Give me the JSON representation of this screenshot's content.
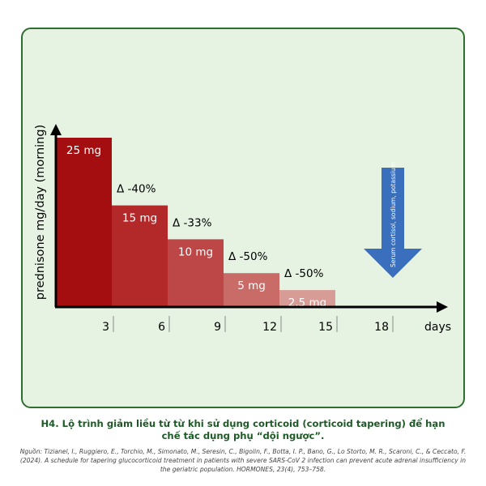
{
  "colors": {
    "panel_bg": "#e6f3e3",
    "panel_border": "#2f6e2f",
    "bars": [
      "#a50e10",
      "#b3292a",
      "#bd4646",
      "#c96b67",
      "#d89c97"
    ],
    "arrow": "#3a6fbd",
    "caption": "#1d5a26"
  },
  "chart_data": {
    "type": "bar",
    "ylabel": "prednisone mg/day (morning)",
    "xlabel": "days",
    "x_ticks": [
      "3",
      "6",
      "9",
      "12",
      "15",
      "18"
    ],
    "ylim": [
      0,
      30
    ],
    "bars": [
      {
        "x_start": 0,
        "x_end": 3,
        "value": 25,
        "label": "25 mg"
      },
      {
        "x_start": 3,
        "x_end": 6,
        "value": 15,
        "label": "15 mg"
      },
      {
        "x_start": 6,
        "x_end": 9,
        "value": 10,
        "label": "10 mg"
      },
      {
        "x_start": 9,
        "x_end": 12,
        "value": 5,
        "label": "5 mg"
      },
      {
        "x_start": 12,
        "x_end": 15,
        "value": 2.5,
        "label": "2.5 mg"
      }
    ],
    "deltas": [
      "Δ -40%",
      "Δ -33%",
      "Δ -50%",
      "Δ -50%"
    ],
    "arrow_label": "Serum cortisol, sodium, potassium"
  },
  "caption": "H4. Lộ trình giảm liều từ từ khi sử dụng corticoid (corticoid tapering) để hạn chế tác dụng phụ “dội ngược”.",
  "source": "Nguồn: Tizianel, I., Ruggiero, E., Torchio, M., Simonato, M., Seresin, C., Bigolin, F., Botta, I. P., Bano, G., Lo Storto, M. R., Scaroni, C., & Ceccato, F. (2024). A schedule for tapering glucocorticoid treatment in patients with severe SARS-CoV 2 infection can prevent acute adrenal insufficiency in the geriatric population. HORMONES, 23(4), 753–758."
}
